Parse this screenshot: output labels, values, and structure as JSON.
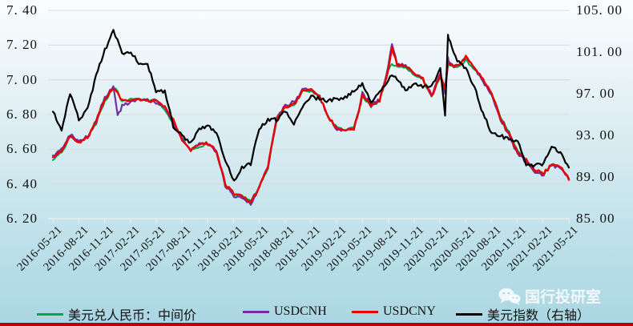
{
  "chart_data": {
    "type": "line",
    "title": "",
    "grid": true,
    "legend_position": "bottom",
    "left_axis": {
      "min": 6.2,
      "max": 7.4,
      "tick_labels": [
        "7. 40",
        "7. 20",
        "7. 00",
        "6. 80",
        "6. 60",
        "6. 40",
        "6. 20"
      ]
    },
    "right_axis": {
      "min": 85.0,
      "max": 105.0,
      "label": "美元指数（右轴）",
      "tick_labels": [
        "105. 00",
        "101. 00",
        "97. 00",
        "93. 00",
        "89. 00",
        "85. 00"
      ]
    },
    "x_tick_labels": [
      "2016-05-21",
      "2016-08-21",
      "2016-11-21",
      "2017-02-21",
      "2017-05-21",
      "2017-08-21",
      "2017-11-21",
      "2018-02-21",
      "2018-05-21",
      "2018-08-21",
      "2018-11-21",
      "2019-02-21",
      "2019-05-21",
      "2019-08-21",
      "2019-11-21",
      "2020-02-21",
      "2020-05-21",
      "2020-08-21",
      "2020-11-21",
      "2021-02-21",
      "2021-05-21"
    ],
    "x": [
      "2016-05-21",
      "2016-06-21",
      "2016-07-21",
      "2016-08-21",
      "2016-09-21",
      "2016-10-21",
      "2016-11-21",
      "2016-12-21",
      "2017-01-05",
      "2017-01-21",
      "2017-02-21",
      "2017-03-21",
      "2017-04-21",
      "2017-05-21",
      "2017-06-21",
      "2017-07-21",
      "2017-08-21",
      "2017-09-21",
      "2017-10-21",
      "2017-11-21",
      "2017-12-21",
      "2018-01-21",
      "2018-02-21",
      "2018-03-21",
      "2018-04-21",
      "2018-05-21",
      "2018-06-21",
      "2018-07-21",
      "2018-08-21",
      "2018-09-21",
      "2018-10-21",
      "2018-11-21",
      "2018-12-21",
      "2019-01-21",
      "2019-02-21",
      "2019-03-21",
      "2019-04-21",
      "2019-05-21",
      "2019-06-21",
      "2019-07-21",
      "2019-08-21",
      "2019-09-03",
      "2019-09-21",
      "2019-10-21",
      "2019-11-21",
      "2019-12-21",
      "2020-01-21",
      "2020-02-21",
      "2020-03-09",
      "2020-03-19",
      "2020-03-21",
      "2020-04-21",
      "2020-05-21",
      "2020-06-21",
      "2020-07-21",
      "2020-08-21",
      "2020-09-21",
      "2020-10-21",
      "2020-11-21",
      "2020-12-21",
      "2021-01-21",
      "2021-02-21",
      "2021-03-21",
      "2021-04-21",
      "2021-05-21"
    ],
    "series": [
      {
        "name": "美元兑人民币：中间价",
        "color": "#00A651",
        "axis": "left",
        "values": [
          6.54,
          6.58,
          6.68,
          6.64,
          6.67,
          6.75,
          6.88,
          6.95,
          6.93,
          6.87,
          6.89,
          6.89,
          6.88,
          6.89,
          6.82,
          6.76,
          6.67,
          6.59,
          6.61,
          6.63,
          6.59,
          6.4,
          6.34,
          6.33,
          6.3,
          6.38,
          6.49,
          6.76,
          6.84,
          6.85,
          6.93,
          6.94,
          6.9,
          6.78,
          6.73,
          6.71,
          6.72,
          6.9,
          6.85,
          6.88,
          7.05,
          7.09,
          7.08,
          7.07,
          7.03,
          7.0,
          6.9,
          7.02,
          6.93,
          7.07,
          7.09,
          7.07,
          7.11,
          7.06,
          6.99,
          6.92,
          6.79,
          6.7,
          6.59,
          6.54,
          6.48,
          6.46,
          6.51,
          6.5,
          6.43
        ]
      },
      {
        "name": "USDCNH",
        "color": "#7030A0",
        "axis": "left",
        "values": [
          6.56,
          6.6,
          6.69,
          6.65,
          6.67,
          6.77,
          6.9,
          6.96,
          6.79,
          6.85,
          6.87,
          6.89,
          6.88,
          6.87,
          6.84,
          6.76,
          6.66,
          6.59,
          6.63,
          6.63,
          6.58,
          6.39,
          6.33,
          6.32,
          6.28,
          6.38,
          6.5,
          6.78,
          6.85,
          6.87,
          6.94,
          6.95,
          6.9,
          6.78,
          6.71,
          6.71,
          6.71,
          6.92,
          6.86,
          6.88,
          7.08,
          7.2,
          7.1,
          7.08,
          7.04,
          7.01,
          6.91,
          7.04,
          6.93,
          7.12,
          7.1,
          7.08,
          7.13,
          7.07,
          6.99,
          6.91,
          6.77,
          6.68,
          6.57,
          6.53,
          6.47,
          6.45,
          6.51,
          6.49,
          6.43
        ]
      },
      {
        "name": "USDCNY",
        "color": "#EE0000",
        "axis": "left",
        "values": [
          6.55,
          6.59,
          6.68,
          6.64,
          6.67,
          6.76,
          6.89,
          6.95,
          6.92,
          6.88,
          6.88,
          6.89,
          6.88,
          6.88,
          6.84,
          6.77,
          6.66,
          6.59,
          6.63,
          6.63,
          6.59,
          6.4,
          6.34,
          6.33,
          6.29,
          6.38,
          6.5,
          6.77,
          6.84,
          6.86,
          6.93,
          6.95,
          6.9,
          6.78,
          6.72,
          6.71,
          6.71,
          6.91,
          6.85,
          6.88,
          7.06,
          7.18,
          7.09,
          7.08,
          7.04,
          7.01,
          6.9,
          7.03,
          6.95,
          7.09,
          7.09,
          7.08,
          7.13,
          7.07,
          7.0,
          6.92,
          6.78,
          6.69,
          6.58,
          6.54,
          6.48,
          6.46,
          6.51,
          6.5,
          6.43
        ]
      },
      {
        "name": "美元指数（右轴）",
        "color": "#000000",
        "axis": "right",
        "values": [
          95.3,
          93.6,
          97.0,
          94.5,
          95.5,
          98.7,
          101.2,
          103.0,
          102.2,
          100.8,
          101.1,
          99.8,
          99.9,
          97.1,
          97.3,
          93.9,
          93.1,
          92.2,
          93.7,
          93.9,
          93.3,
          90.6,
          88.6,
          89.9,
          90.3,
          93.7,
          94.5,
          94.5,
          95.3,
          94.2,
          95.7,
          96.7,
          96.5,
          96.3,
          96.5,
          96.6,
          97.3,
          98.0,
          96.2,
          97.2,
          98.3,
          98.9,
          98.5,
          97.3,
          98.0,
          97.7,
          97.6,
          99.3,
          95.0,
          102.8,
          102.4,
          100.2,
          99.4,
          97.6,
          95.1,
          93.2,
          93.0,
          92.6,
          92.4,
          90.2,
          90.1,
          90.3,
          92.0,
          91.3,
          90.0
        ]
      }
    ]
  },
  "legend": {
    "items": [
      "美元兑人民币：中间价",
      "USDCNH",
      "USDCNY",
      "美元指数（右轴）"
    ]
  },
  "watermark": {
    "label": "国行投研室",
    "icon": "wechat-icon"
  },
  "footer": {
    "bar_color": "#C00000"
  },
  "style_colors": {
    "gridline": "#D8DDDF",
    "axis_line": "#E8ECEE",
    "text": "#111111"
  }
}
